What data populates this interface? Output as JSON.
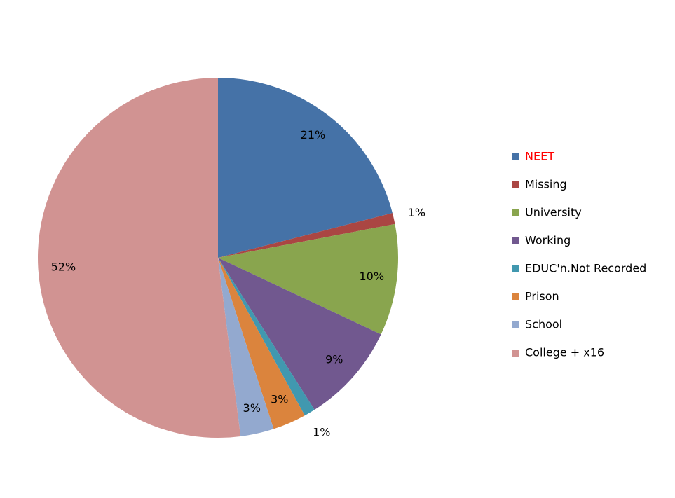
{
  "chart_data": {
    "type": "pie",
    "categories": [
      "NEET",
      "Missing",
      "University",
      "Working",
      "EDUC'n.Not Recorded",
      "Prison",
      "School",
      "College + x16"
    ],
    "values": [
      21,
      1,
      10,
      9,
      1,
      3,
      3,
      52
    ],
    "value_labels": [
      "21%",
      "1%",
      "10%",
      "9%",
      "1%",
      "3%",
      "3%",
      "52%"
    ],
    "colors": [
      "#4572a7",
      "#aa4643",
      "#89a54e",
      "#71588f",
      "#4198af",
      "#db843d",
      "#93a9cf",
      "#d19392"
    ],
    "legend_text_colors": [
      "#ff0000",
      "#000000",
      "#000000",
      "#000000",
      "#000000",
      "#000000",
      "#000000",
      "#000000"
    ],
    "legend": "right"
  }
}
